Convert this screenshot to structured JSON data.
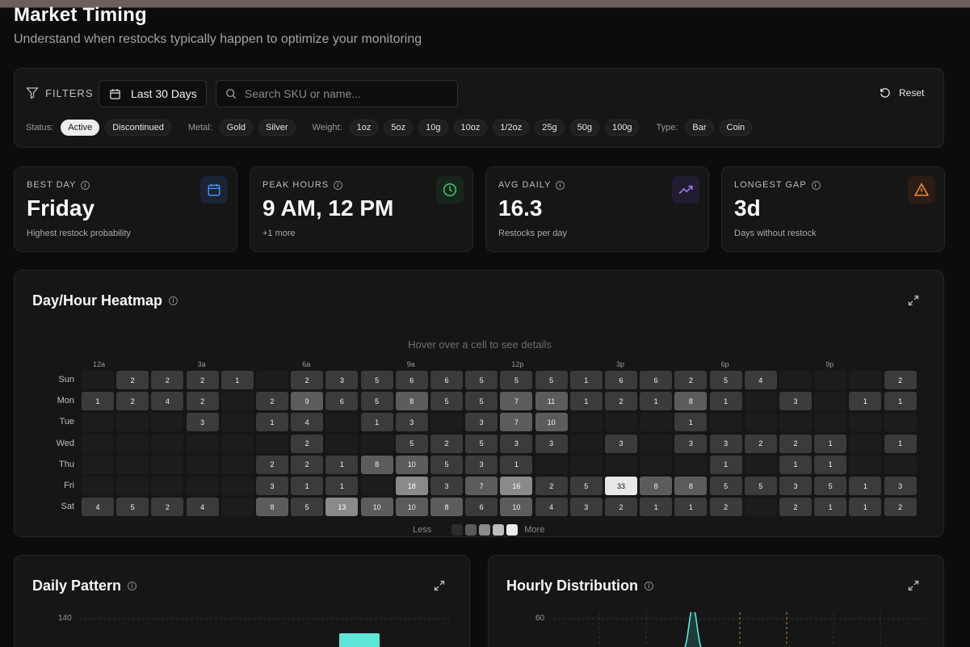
{
  "page": {
    "title": "Market Timing",
    "subtitle": "Understand when restocks typically happen to optimize your monitoring"
  },
  "filters": {
    "label": "FILTERS",
    "date_range": "Last 30 Days",
    "search_placeholder": "Search SKU or name...",
    "reset_label": "Reset",
    "groups": [
      {
        "label": "Status:",
        "options": [
          "Active",
          "Discontinued"
        ],
        "active": "Active"
      },
      {
        "label": "Metal:",
        "options": [
          "Gold",
          "Silver"
        ],
        "active": ""
      },
      {
        "label": "Weight:",
        "options": [
          "1oz",
          "5oz",
          "10g",
          "10oz",
          "1/2oz",
          "25g",
          "50g",
          "100g"
        ],
        "active": ""
      },
      {
        "label": "Type:",
        "options": [
          "Bar",
          "Coin"
        ],
        "active": ""
      }
    ]
  },
  "stats": [
    {
      "label": "BEST DAY",
      "value": "Friday",
      "sub": "Highest restock probability",
      "icon": "calendar-icon",
      "color": "#4a8cf7",
      "bg": "#1a2436"
    },
    {
      "label": "PEAK HOURS",
      "value": "9 AM, 12 PM",
      "sub": "+1 more",
      "icon": "clock-icon",
      "color": "#3fc26a",
      "bg": "#17261c"
    },
    {
      "label": "AVG DAILY",
      "value": "16.3",
      "sub": "Restocks per day",
      "icon": "trending-up-icon",
      "color": "#a67af5",
      "bg": "#221c30"
    },
    {
      "label": "LONGEST GAP",
      "value": "3d",
      "sub": "Days without restock",
      "icon": "warning-icon",
      "color": "#f08a3c",
      "bg": "#2b1d14"
    }
  ],
  "heatmap": {
    "title": "Day/Hour Heatmap",
    "hint": "Hover over a cell to see details",
    "hour_labels": [
      {
        "h": 0,
        "label": "12a"
      },
      {
        "h": 3,
        "label": "3a"
      },
      {
        "h": 6,
        "label": "6a"
      },
      {
        "h": 9,
        "label": "9a"
      },
      {
        "h": 12,
        "label": "12p"
      },
      {
        "h": 15,
        "label": "3p"
      },
      {
        "h": 18,
        "label": "6p"
      },
      {
        "h": 21,
        "label": "9p"
      }
    ],
    "days": [
      "Sun",
      "Mon",
      "Tue",
      "Wed",
      "Thu",
      "Fri",
      "Sat"
    ],
    "values": [
      [
        0,
        2,
        2,
        2,
        1,
        0,
        2,
        3,
        5,
        6,
        6,
        5,
        5,
        5,
        1,
        6,
        6,
        2,
        5,
        4,
        0,
        0,
        0,
        2
      ],
      [
        1,
        2,
        4,
        2,
        0,
        2,
        9,
        6,
        5,
        8,
        5,
        5,
        7,
        11,
        1,
        2,
        1,
        8,
        1,
        0,
        3,
        0,
        1,
        1
      ],
      [
        0,
        0,
        0,
        3,
        0,
        1,
        4,
        0,
        1,
        3,
        0,
        3,
        7,
        10,
        0,
        0,
        0,
        1,
        0,
        0,
        0,
        0,
        0,
        0
      ],
      [
        0,
        0,
        0,
        0,
        0,
        0,
        2,
        0,
        0,
        5,
        2,
        5,
        3,
        3,
        0,
        3,
        0,
        3,
        3,
        2,
        2,
        1,
        0,
        1
      ],
      [
        0,
        0,
        0,
        0,
        0,
        2,
        2,
        1,
        8,
        10,
        5,
        3,
        1,
        0,
        0,
        0,
        0,
        0,
        1,
        0,
        1,
        1,
        0,
        0
      ],
      [
        0,
        0,
        0,
        0,
        0,
        3,
        1,
        1,
        0,
        18,
        3,
        7,
        16,
        2,
        5,
        33,
        8,
        8,
        5,
        5,
        3,
        5,
        1,
        3
      ],
      [
        4,
        5,
        2,
        4,
        0,
        8,
        5,
        13,
        10,
        10,
        8,
        6,
        10,
        4,
        3,
        2,
        1,
        1,
        2,
        0,
        2,
        1,
        1,
        2
      ]
    ],
    "legend_less": "Less",
    "legend_more": "More"
  },
  "daily_pattern": {
    "title": "Daily Pattern",
    "y_tick": "140"
  },
  "hourly_distribution": {
    "title": "Hourly Distribution",
    "y_tick": "60"
  }
}
